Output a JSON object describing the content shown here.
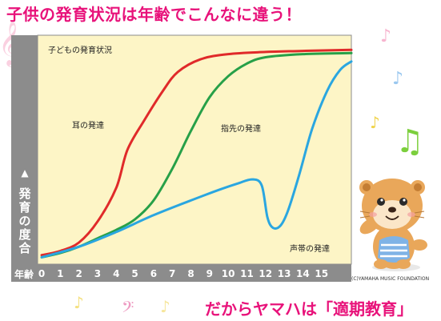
{
  "headline": "子供の発育状況は年齢でこんなに違う！",
  "footer": "だからヤマハは「適期教育」",
  "credit": "(C)YAMAHA MUSIC FOUNDATION",
  "colors": {
    "headline": "#e8127a",
    "plot_bg": "#fdf5c6",
    "axis_band": "#8c8c8c",
    "axis_text": "#ffffff",
    "ear": "#e02a2a",
    "finger": "#27a048",
    "voice": "#2aa6e0"
  },
  "mascot": "yamaha-otter-mascot",
  "decorations": [
    "music-note-icon",
    "treble-clef-icon",
    "bass-clef-icon"
  ],
  "chart_data": {
    "type": "line",
    "title": "子どもの発育状況",
    "xlabel": "年齢",
    "ylabel": "発育の度合",
    "ylabel_arrow": "▲",
    "xlim": [
      0,
      16.6
    ],
    "ylim": [
      0,
      100
    ],
    "x_ticks": [
      0,
      1,
      2,
      3,
      4,
      5,
      6,
      7,
      8,
      9,
      10,
      11,
      12,
      13,
      14,
      15
    ],
    "series": [
      {
        "name": "耳の発達",
        "color": "#e02a2a",
        "points": [
          [
            0,
            2
          ],
          [
            1,
            4
          ],
          [
            2,
            8
          ],
          [
            3,
            18
          ],
          [
            4,
            34
          ],
          [
            4.6,
            52
          ],
          [
            5.5,
            66
          ],
          [
            6.5,
            80
          ],
          [
            7.3,
            89
          ],
          [
            8.5,
            95
          ],
          [
            10,
            97.5
          ],
          [
            12,
            98.5
          ],
          [
            14,
            99
          ],
          [
            16.6,
            99.5
          ]
        ]
      },
      {
        "name": "指先の発達",
        "color": "#27a048",
        "points": [
          [
            0,
            1
          ],
          [
            1,
            3
          ],
          [
            2,
            6
          ],
          [
            3,
            10
          ],
          [
            4,
            14
          ],
          [
            5,
            19
          ],
          [
            6,
            28
          ],
          [
            7,
            43
          ],
          [
            8,
            61
          ],
          [
            9,
            77
          ],
          [
            10,
            87
          ],
          [
            11,
            93
          ],
          [
            12,
            96
          ],
          [
            14,
            97.5
          ],
          [
            16.6,
            98
          ]
        ]
      },
      {
        "name": "声帯の発達",
        "color": "#2aa6e0",
        "points": [
          [
            0,
            1
          ],
          [
            2,
            6
          ],
          [
            4,
            13
          ],
          [
            6,
            21
          ],
          [
            8,
            28
          ],
          [
            9.5,
            33
          ],
          [
            10.5,
            36
          ],
          [
            11.3,
            38
          ],
          [
            11.8,
            35
          ],
          [
            12.1,
            20
          ],
          [
            12.4,
            15
          ],
          [
            12.8,
            16
          ],
          [
            13.2,
            23
          ],
          [
            13.8,
            40
          ],
          [
            14.5,
            62
          ],
          [
            15.3,
            80
          ],
          [
            16,
            90
          ],
          [
            16.6,
            94
          ]
        ]
      }
    ],
    "legend": "inline-labels"
  }
}
